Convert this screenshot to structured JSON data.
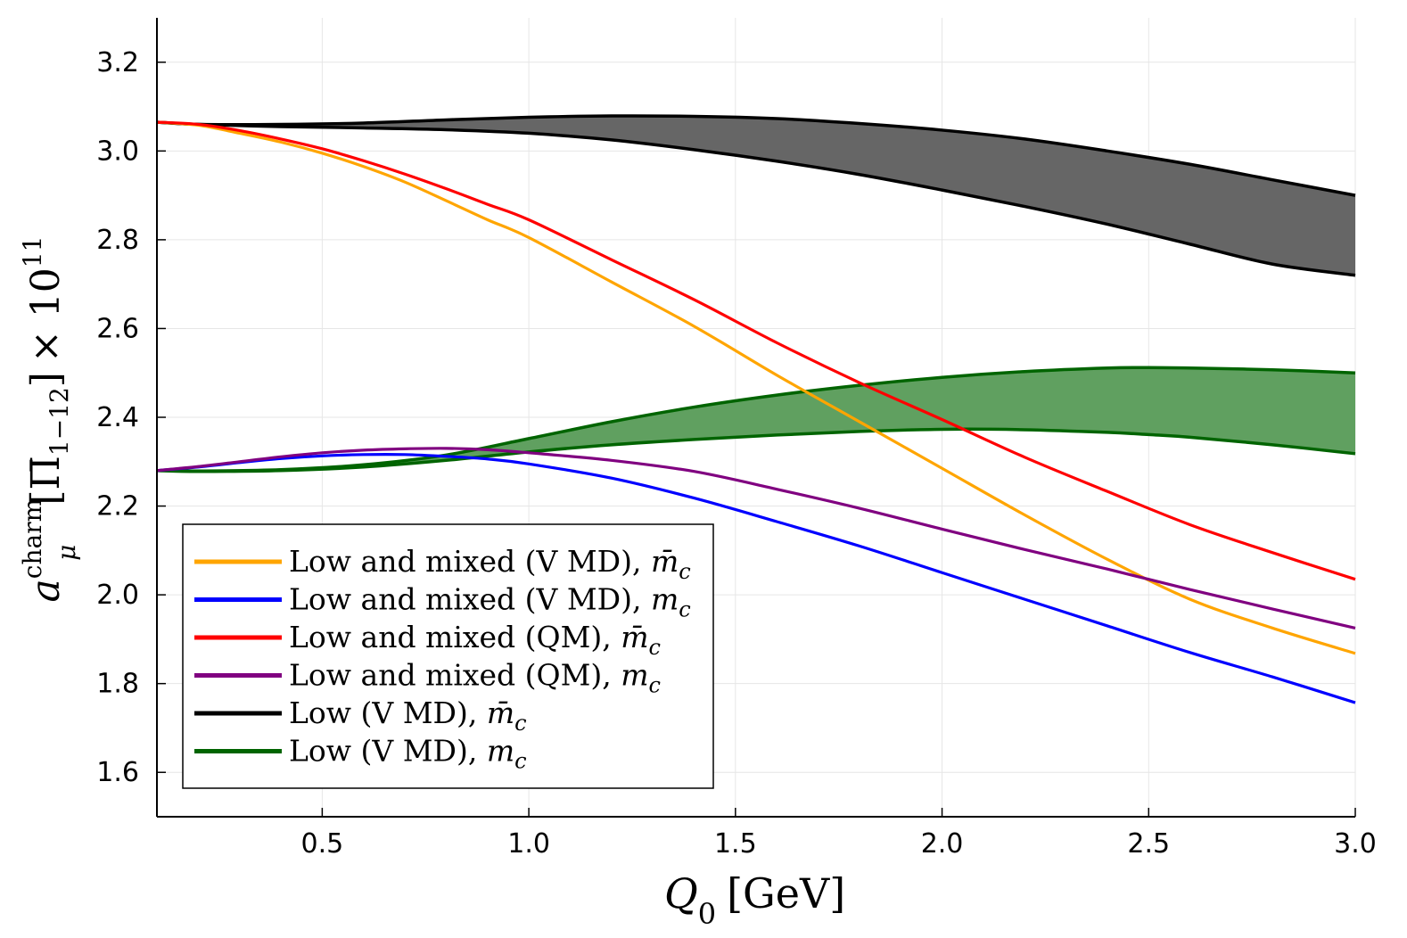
{
  "chart_data": {
    "type": "line",
    "xlabel": {
      "main": "Q",
      "sub": "0",
      "unit": "[GeV]"
    },
    "ylabel": {
      "base": "a",
      "sub": "μ",
      "sup": "charm",
      "bracket_open": "[",
      "Pi": "Π̄",
      "range": "1−12",
      "bracket_close": "]",
      "times": "× 10",
      "exp": "11"
    },
    "xlim": [
      0.1,
      3.0
    ],
    "ylim": [
      1.5,
      3.3
    ],
    "xticks": [
      0.5,
      1.0,
      1.5,
      2.0,
      2.5,
      3.0
    ],
    "xtick_labels": [
      "0.5",
      "1.0",
      "1.5",
      "2.0",
      "2.5",
      "3.0"
    ],
    "yticks": [
      1.6,
      1.8,
      2.0,
      2.2,
      2.4,
      2.6,
      2.8,
      3.0,
      3.2
    ],
    "ytick_labels": [
      "1.6",
      "1.8",
      "2.0",
      "2.2",
      "2.4",
      "2.6",
      "2.8",
      "3.0",
      "3.2"
    ],
    "grid": true,
    "legend_position": "bottom-left",
    "series": [
      {
        "name": "Low and mixed (VMD), m̄c",
        "label_main": "Low and mixed (V MD),",
        "label_sym": "m̄",
        "label_sub": "c",
        "color": "#FFA500",
        "kind": "line",
        "x": [
          0.1,
          0.2,
          0.3,
          0.4,
          0.5,
          0.6,
          0.7,
          0.8,
          0.9,
          1.0,
          1.2,
          1.4,
          1.6,
          1.8,
          2.0,
          2.2,
          2.4,
          2.6,
          2.8,
          3.0
        ],
        "y": [
          3.065,
          3.058,
          3.04,
          3.02,
          2.995,
          2.965,
          2.93,
          2.888,
          2.845,
          2.805,
          2.705,
          2.605,
          2.495,
          2.39,
          2.285,
          2.18,
          2.08,
          1.99,
          1.925,
          1.868
        ]
      },
      {
        "name": "Low and mixed (VMD), mc",
        "label_main": "Low and mixed (V MD),",
        "label_sym": "m",
        "label_sub": "c",
        "color": "#0000FF",
        "kind": "line",
        "x": [
          0.1,
          0.2,
          0.3,
          0.4,
          0.5,
          0.6,
          0.7,
          0.8,
          0.9,
          1.0,
          1.2,
          1.4,
          1.6,
          1.8,
          2.0,
          2.2,
          2.4,
          2.6,
          2.8,
          3.0
        ],
        "y": [
          2.28,
          2.288,
          2.298,
          2.307,
          2.313,
          2.316,
          2.316,
          2.312,
          2.306,
          2.295,
          2.263,
          2.218,
          2.165,
          2.11,
          2.05,
          1.99,
          1.93,
          1.87,
          1.815,
          1.757
        ]
      },
      {
        "name": "Low and mixed (QM), m̄c",
        "label_main": "Low and mixed (QM),",
        "label_sym": "m̄",
        "label_sub": "c",
        "color": "#FF0000",
        "kind": "line",
        "x": [
          0.1,
          0.2,
          0.3,
          0.4,
          0.5,
          0.6,
          0.7,
          0.8,
          0.9,
          1.0,
          1.2,
          1.4,
          1.6,
          1.8,
          2.0,
          2.2,
          2.4,
          2.6,
          2.8,
          3.0
        ],
        "y": [
          3.065,
          3.06,
          3.046,
          3.027,
          3.005,
          2.978,
          2.948,
          2.915,
          2.88,
          2.845,
          2.755,
          2.665,
          2.568,
          2.478,
          2.395,
          2.31,
          2.233,
          2.158,
          2.095,
          2.035
        ]
      },
      {
        "name": "Low and mixed (QM), mc",
        "label_main": "Low and mixed (QM),",
        "label_sym": "m",
        "label_sub": "c",
        "color": "#800080",
        "kind": "line",
        "x": [
          0.1,
          0.2,
          0.3,
          0.4,
          0.5,
          0.6,
          0.7,
          0.8,
          0.9,
          1.0,
          1.2,
          1.4,
          1.6,
          1.8,
          2.0,
          2.2,
          2.4,
          2.6,
          2.8,
          3.0
        ],
        "y": [
          2.28,
          2.289,
          2.3,
          2.311,
          2.32,
          2.326,
          2.329,
          2.33,
          2.327,
          2.32,
          2.303,
          2.278,
          2.238,
          2.195,
          2.148,
          2.102,
          2.058,
          2.012,
          1.968,
          1.925
        ]
      },
      {
        "name": "Low (VMD), m̄c",
        "label_main": "Low (V MD),",
        "label_sym": "m̄",
        "label_sub": "c",
        "color": "#000000",
        "fill": "#666666",
        "kind": "band",
        "x": [
          0.1,
          0.2,
          0.4,
          0.6,
          0.8,
          1.0,
          1.2,
          1.4,
          1.6,
          1.8,
          2.0,
          2.2,
          2.4,
          2.6,
          2.8,
          3.0
        ],
        "y_upper": [
          3.065,
          3.06,
          3.06,
          3.063,
          3.07,
          3.076,
          3.079,
          3.078,
          3.073,
          3.062,
          3.047,
          3.027,
          3.0,
          2.97,
          2.935,
          2.9
        ],
        "y_lower": [
          3.065,
          3.06,
          3.055,
          3.052,
          3.048,
          3.04,
          3.025,
          3.003,
          2.977,
          2.947,
          2.912,
          2.875,
          2.835,
          2.79,
          2.745,
          2.72
        ]
      },
      {
        "name": "Low (VMD), mc",
        "label_main": "Low (V MD),",
        "label_sym": "m",
        "label_sub": "c",
        "color": "#006400",
        "fill": "#60A060",
        "kind": "band",
        "x": [
          0.1,
          0.2,
          0.4,
          0.6,
          0.8,
          1.0,
          1.2,
          1.4,
          1.6,
          1.8,
          2.0,
          2.2,
          2.4,
          2.5,
          2.6,
          2.8,
          3.0
        ],
        "y_upper": [
          2.28,
          2.279,
          2.282,
          2.293,
          2.315,
          2.352,
          2.39,
          2.423,
          2.45,
          2.472,
          2.49,
          2.503,
          2.511,
          2.512,
          2.511,
          2.507,
          2.5
        ],
        "y_lower": [
          2.28,
          2.278,
          2.28,
          2.288,
          2.303,
          2.322,
          2.338,
          2.35,
          2.36,
          2.368,
          2.373,
          2.372,
          2.366,
          2.361,
          2.355,
          2.338,
          2.318
        ]
      }
    ]
  }
}
